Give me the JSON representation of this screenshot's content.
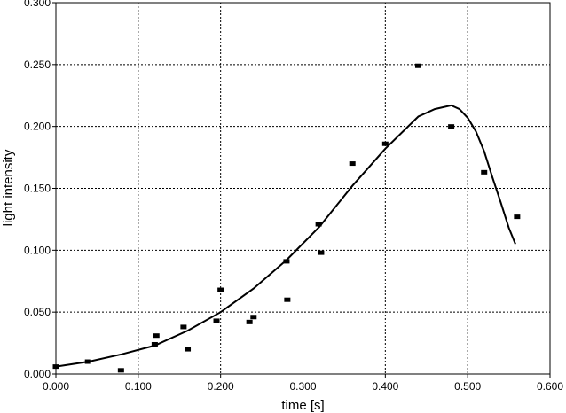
{
  "chart_data": {
    "type": "scatter",
    "title": "",
    "xlabel": "time [s]",
    "ylabel": "light intensity",
    "xlim": [
      0,
      0.6
    ],
    "ylim": [
      0,
      0.3
    ],
    "x_ticks": [
      "0.000",
      "0.100",
      "0.200",
      "0.300",
      "0.400",
      "0.500",
      "0.600"
    ],
    "y_ticks": [
      "0.000",
      "0.050",
      "0.100",
      "0.150",
      "0.200",
      "0.250",
      "0.300"
    ],
    "grid": true,
    "legend": "none",
    "series": [
      {
        "kind": "points",
        "marker": "square",
        "color": "#000000",
        "points": [
          [
            0.0,
            0.006
          ],
          [
            0.039,
            0.01
          ],
          [
            0.079,
            0.003
          ],
          [
            0.12,
            0.024
          ],
          [
            0.122,
            0.031
          ],
          [
            0.155,
            0.038
          ],
          [
            0.16,
            0.02
          ],
          [
            0.195,
            0.043
          ],
          [
            0.2,
            0.068
          ],
          [
            0.235,
            0.042
          ],
          [
            0.24,
            0.046
          ],
          [
            0.28,
            0.091
          ],
          [
            0.281,
            0.06
          ],
          [
            0.319,
            0.121
          ],
          [
            0.322,
            0.098
          ],
          [
            0.36,
            0.17
          ],
          [
            0.4,
            0.186
          ],
          [
            0.44,
            0.249
          ],
          [
            0.48,
            0.2
          ],
          [
            0.52,
            0.163
          ],
          [
            0.56,
            0.127
          ]
        ]
      },
      {
        "kind": "line",
        "color": "#000000",
        "points": [
          [
            0.0,
            0.006
          ],
          [
            0.04,
            0.01
          ],
          [
            0.08,
            0.016
          ],
          [
            0.12,
            0.023
          ],
          [
            0.16,
            0.035
          ],
          [
            0.2,
            0.05
          ],
          [
            0.24,
            0.069
          ],
          [
            0.28,
            0.092
          ],
          [
            0.32,
            0.119
          ],
          [
            0.36,
            0.152
          ],
          [
            0.4,
            0.182
          ],
          [
            0.44,
            0.208
          ],
          [
            0.46,
            0.214
          ],
          [
            0.48,
            0.217
          ],
          [
            0.49,
            0.214
          ],
          [
            0.5,
            0.207
          ],
          [
            0.51,
            0.196
          ],
          [
            0.52,
            0.18
          ],
          [
            0.53,
            0.159
          ],
          [
            0.54,
            0.139
          ],
          [
            0.55,
            0.118
          ],
          [
            0.558,
            0.105
          ]
        ]
      }
    ]
  }
}
